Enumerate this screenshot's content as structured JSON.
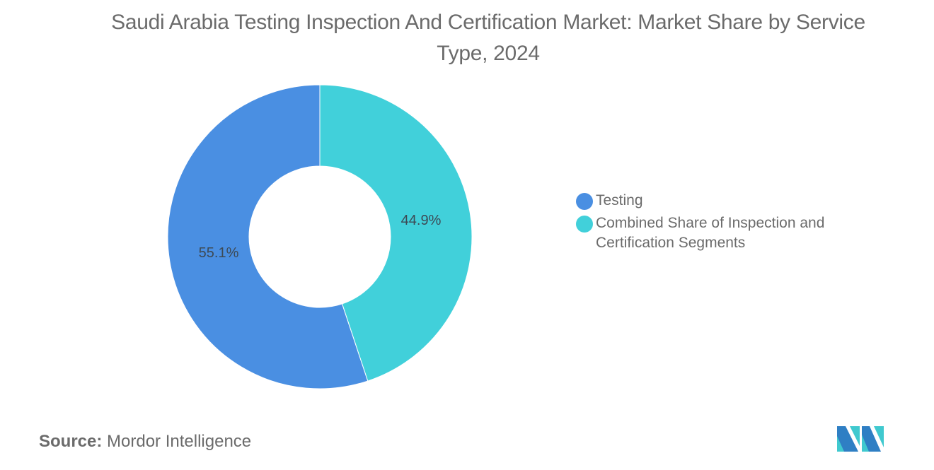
{
  "title": "Saudi Arabia Testing Inspection And Certification Market: Market Share by Service Type, 2024",
  "colors": {
    "testing": "#4a8fe2",
    "combined": "#41d0da",
    "background": "#ffffff",
    "text": "#6b6b6b"
  },
  "legend": {
    "items": [
      {
        "label": "Testing",
        "color": "#4a8fe2"
      },
      {
        "label": "Combined Share of Inspection and Certification Segments",
        "color": "#41d0da"
      }
    ]
  },
  "slice_labels": {
    "testing": "55.1%",
    "combined": "44.9%"
  },
  "source": {
    "key": "Source:",
    "value": "Mordor Intelligence"
  },
  "logo": {
    "icon": "mordor-intelligence-logo-icon"
  },
  "chart_data": {
    "type": "pie",
    "variant": "donut",
    "title": "Saudi Arabia Testing Inspection And Certification Market: Market Share by Service Type, 2024",
    "categories": [
      "Testing",
      "Combined Share of Inspection and Certification Segments"
    ],
    "values": [
      55.1,
      44.9
    ],
    "unit": "%",
    "colors": [
      "#4a8fe2",
      "#41d0da"
    ],
    "legend_position": "right",
    "start_angle": "12 o'clock, clockwise order: Combined (44.9%) then Testing (55.1%)"
  }
}
